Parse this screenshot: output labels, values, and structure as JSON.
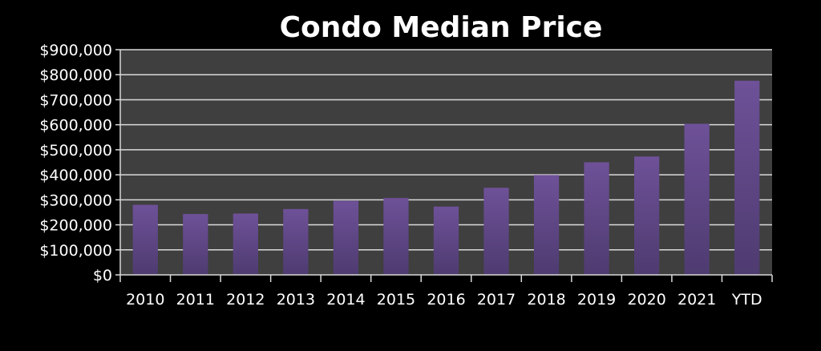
{
  "chart_data": {
    "type": "bar",
    "title": "Condo Median Price",
    "categories": [
      "2010",
      "2011",
      "2012",
      "2013",
      "2014",
      "2015",
      "2016",
      "2017",
      "2018",
      "2019",
      "2020",
      "2021",
      "YTD"
    ],
    "series": [
      {
        "values": [
          280000,
          243000,
          245000,
          263000,
          296000,
          307000,
          273000,
          348000,
          399000,
          450000,
          473000,
          604000,
          776000
        ]
      }
    ],
    "xlabel": "",
    "ylabel": "",
    "ylim": [
      0,
      900000
    ],
    "yticks": [
      0,
      100000,
      200000,
      300000,
      400000,
      500000,
      600000,
      700000,
      800000,
      900000
    ],
    "ytick_labels": [
      "$0",
      "$100,000",
      "$200,000",
      "$300,000",
      "$400,000",
      "$500,000",
      "$600,000",
      "$700,000",
      "$800,000",
      "$900,000"
    ],
    "grid": true,
    "legend": "none",
    "colors": {
      "background": "#000000",
      "plot_area": "#3f3f3f",
      "gridline": "#d9d9d9",
      "bar_top": "#6e5198",
      "bar_bottom": "#4e3b70",
      "text": "#ffffff"
    }
  }
}
